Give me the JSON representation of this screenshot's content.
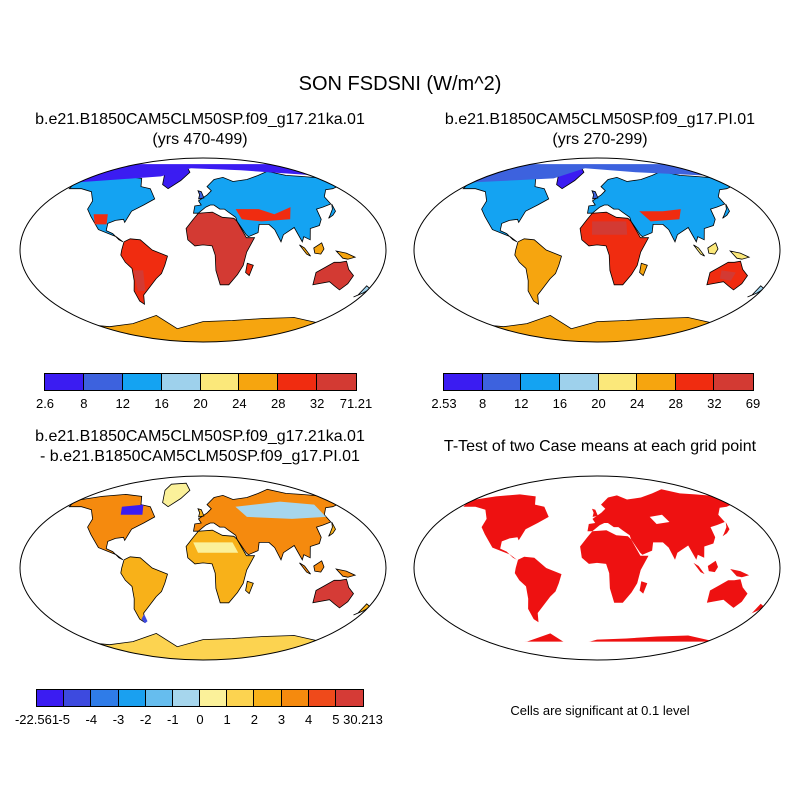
{
  "figure": {
    "title": "SON FSDSNI (W/m^2)",
    "panels": [
      {
        "id": "case1",
        "title_lines": [
          "b.e21.B1850CAM5CLM50SP.f09_g17.21ka.01",
          "(yrs 470-499)"
        ],
        "colorbar": {
          "labels": [
            "2.6",
            "8",
            "12",
            "16",
            "20",
            "24",
            "28",
            "32",
            "71.21"
          ],
          "colors": [
            "#3b1cf2",
            "#3d62de",
            "#14a3f2",
            "#9ed1ec",
            "#fbe87a",
            "#f6a50f",
            "#f02c10",
            "#d33a33"
          ]
        }
      },
      {
        "id": "case2",
        "title_lines": [
          "b.e21.B1850CAM5CLM50SP.f09_g17.PI.01",
          "(yrs 270-299)"
        ],
        "colorbar": {
          "labels": [
            "2.53",
            "8",
            "12",
            "16",
            "20",
            "24",
            "28",
            "32",
            "69"
          ],
          "colors": [
            "#3b1cf2",
            "#3d62de",
            "#14a3f2",
            "#9ed1ec",
            "#fbe87a",
            "#f6a50f",
            "#f02c10",
            "#d33a33"
          ]
        }
      },
      {
        "id": "difference",
        "title_lines": [
          "b.e21.B1850CAM5CLM50SP.f09_g17.21ka.01",
          "- b.e21.B1850CAM5CLM50SP.f09_g17.PI.01"
        ],
        "colorbar": {
          "labels": [
            "-22.561",
            "-5",
            "-4",
            "-3",
            "-2",
            "-1",
            "0",
            "1",
            "2",
            "3",
            "4",
            "5",
            "30.213"
          ],
          "colors": [
            "#3b1cf2",
            "#3d4adf",
            "#2f7ce8",
            "#1aa0f0",
            "#66bdee",
            "#a6d6ed",
            "#fbf19a",
            "#fcd350",
            "#f8b119",
            "#f58a0e",
            "#ef4a1b",
            "#d53b36"
          ]
        }
      },
      {
        "id": "ttest",
        "title_lines": [
          "T-Test of two Case means at each grid point"
        ],
        "note": "Cells are significant at 0.1 level",
        "color": "#ee1111"
      }
    ]
  }
}
